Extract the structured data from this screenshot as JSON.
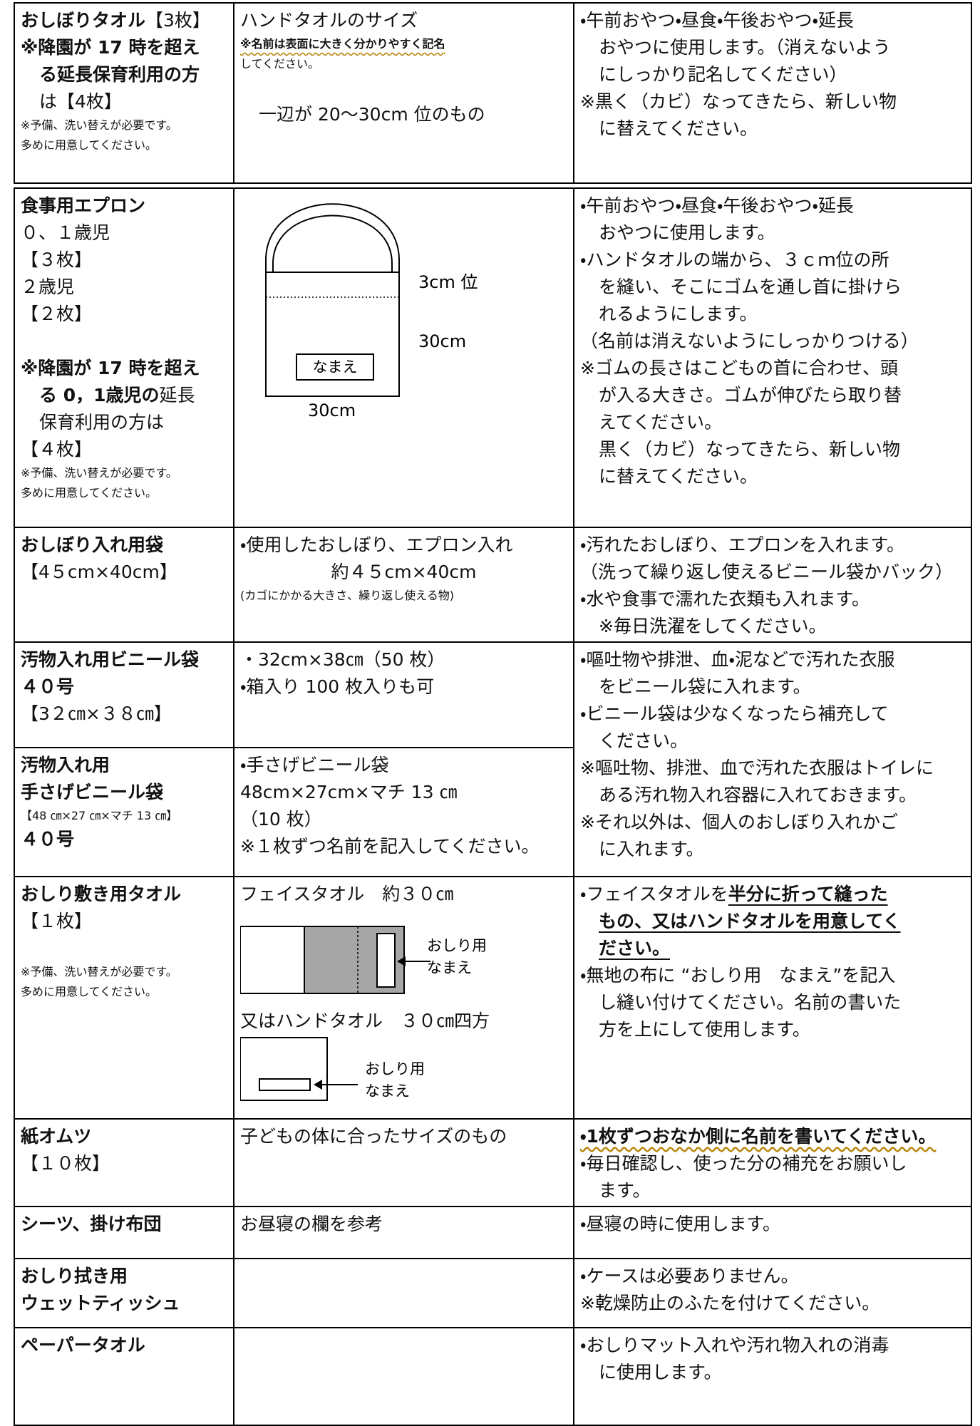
{
  "rows": [
    {
      "c1": [
        {
          "parts": [
            {
              "text": "おしぼりタオル",
              "bold": true
            },
            {
              "text": "【3枚】"
            }
          ]
        },
        {
          "text": "※降園が 17 時を超え",
          "bold": true
        },
        {
          "text": "る延長保育利用の方",
          "bold": true,
          "indent": true
        },
        {
          "text": "は【4枚】",
          "indent": true
        },
        {
          "text": "※予備、洗い替えが必要です。",
          "small": true
        },
        {
          "text": "多めに用意してください。",
          "small": true
        }
      ],
      "c2": [
        "ハンドタオルのサイズ",
        {
          "text": "※名前は表面に大きく分かりやすく記名",
          "bold": true,
          "small": true,
          "wavy": true
        },
        {
          "text": "してください。",
          "small": true
        },
        {
          "text": "一辺が 20～30cm 位のもの",
          "indent": true,
          "gap": true
        }
      ],
      "c3": [
        "・午前おやつ・昼食・午後おやつ・延長",
        {
          "text": "おやつに使用します。（消えないよう",
          "indent": true
        },
        {
          "text": "にしっかり記名してください）",
          "indent": true
        },
        "※黒く（カビ）なってきたら、新しい物",
        {
          "text": "に替えてください。",
          "indent": true
        }
      ]
    },
    {
      "c1": [
        {
          "text": "食事用エプロン",
          "bold": true
        },
        "０、１歳児",
        "【３枚】",
        "２歳児",
        "【２枚】",
        {
          "text": "※降園が 17 時を超え",
          "bold": true,
          "gap": true
        },
        {
          "parts": [
            {
              "text": "る 0，1歳児の",
              "bold": true
            },
            {
              "text": "延長"
            }
          ],
          "indent": true
        },
        {
          "text": "保育利用の方は",
          "indent": true
        },
        "【４枚】",
        {
          "text": "※予備、洗い替えが必要です。",
          "small": true
        },
        {
          "text": "多めに用意してください。",
          "small": true
        }
      ],
      "c2": [
        {
          "labels": [
            "3cm 位",
            "30cm",
            "なまえ",
            "30cm"
          ]
        }
      ],
      "c3": [
        "・午前おやつ・昼食・午後おやつ・延長",
        {
          "text": "おやつに使用します。",
          "indent": true
        },
        "・ハンドタオルの端から、３ｃｍ位の所",
        {
          "text": "を縫い、そこにゴムを通し首に掛けら",
          "indent": true
        },
        {
          "text": "れるようにします。",
          "indent": true
        },
        "（名前は消えないようにしっかりつける）",
        "※ゴムの長さはこどもの首に合わせ、頭",
        {
          "text": "が入る大きさ。ゴムが伸びたら取り替",
          "indent": true
        },
        {
          "text": "えてください。",
          "indent": true
        },
        {
          "text": "黒く（カビ）なってきたら、新しい物",
          "indent": true
        },
        {
          "text": "に替えてください。",
          "indent": true
        }
      ]
    },
    {
      "c1": [
        {
          "text": "おしぼり入れ用袋",
          "bold": true
        },
        "【4５cm×40cm】"
      ],
      "c2": [
        "・使用したおしぼり、エプロン入れ",
        {
          "text": "約４５cm×40cm",
          "center": true
        },
        {
          "text": "(カゴにかかる大きさ、繰り返し使える物)",
          "small": true
        }
      ],
      "c3": [
        "・汚れたおしぼり、エプロンを入れます。",
        "（洗って繰り返し使えるビニール袋かバック）",
        "・水や食事で濡れた衣類も入れます。",
        {
          "text": "※毎日洗濯をしてください。",
          "indent": true
        }
      ]
    },
    {
      "c1": [
        {
          "text": "汚物入れ用ビニール袋",
          "bold": true
        },
        {
          "text": "４０号",
          "bold": true
        },
        "【3２㎝×３８㎝】"
      ],
      "c2": [
        "・32cm×38㎝（50 枚）",
        "・箱入り 100 枚入りも可"
      ],
      "c3": [
        "・嘔吐物や排泄、血・泥などで汚れた衣服",
        {
          "text": "をビニール袋に入れます。",
          "indent": true
        },
        "・ビニール袋は少なくなったら補充して",
        {
          "text": "ください。",
          "indent": true
        },
        "※嘔吐物、排泄、血で汚れた衣服はトイレに",
        {
          "text": "ある汚れ物入れ容器に入れておきます。",
          "indent": true
        },
        "※それ以外は、個人のおしぼり入れかご",
        {
          "text": "に入れます。",
          "indent": true
        }
      ]
    },
    {
      "c1": [
        {
          "text": "汚物入れ用",
          "bold": true
        },
        {
          "text": "手さげビニール袋",
          "bold": true
        },
        {
          "text": "【48 ㎝×27 ㎝×マチ 13 ㎝】",
          "small": true
        },
        {
          "text": "４０号",
          "bold": true
        }
      ],
      "c2": [
        "・手さげビニール袋",
        "48cm×27cm×マチ 13 ㎝",
        "（10 枚）",
        "※１枚ずつ名前を記入してください。"
      ]
    },
    {
      "c1": [
        {
          "text": "おしり敷き用タオル",
          "bold": true
        },
        "【１枚】",
        {
          "text": "※予備、洗い替えが必要です。",
          "small": true,
          "gap": true
        },
        {
          "text": "多めに用意してください。",
          "small": true
        }
      ],
      "c2": [
        "フェイスタオル　約３０㎝",
        {
          "labels": [
            "おしり用",
            "なまえ"
          ]
        },
        "又はハンドタオル　３０㎝四方",
        {
          "labels": [
            "おしり用",
            "なまえ"
          ]
        }
      ],
      "c3": [
        {
          "parts": [
            {
              "text": "・フェイスタオルを"
            },
            {
              "text": "半分に折って縫った",
              "bold": true,
              "underline": true
            }
          ]
        },
        {
          "text": "もの、又はハンドタオルを用意してく",
          "bold": true,
          "underline": true,
          "indent": true
        },
        {
          "text": "ださい。",
          "bold": true,
          "underline": true,
          "indent": true
        },
        "・無地の布に “おしり用　なまえ”を記入",
        {
          "text": "し縫い付けてください。名前の書いた",
          "indent": true
        },
        {
          "text": "方を上にして使用します。",
          "indent": true
        }
      ]
    },
    {
      "c1": [
        {
          "text": "紙オムツ",
          "bold": true
        },
        "【１０枚】"
      ],
      "c2": [
        "子どもの体に合ったサイズのもの"
      ],
      "c3": [
        {
          "text": "・1枚ずつおなか側に名前を書いてください。",
          "bold": true,
          "wavy": true
        },
        "・毎日確認し、使った分の補充をお願いし",
        {
          "text": "ます。",
          "indent": true
        }
      ]
    },
    {
      "c1": [
        {
          "text": "シーツ、掛け布団",
          "bold": true
        }
      ],
      "c2": [
        "お昼寝の欄を参考"
      ],
      "c3": [
        "・昼寝の時に使用します。"
      ]
    },
    {
      "c1": [
        {
          "text": "おしり拭き用",
          "bold": true
        },
        {
          "text": "ウェットティッシュ",
          "bold": true
        }
      ],
      "c2": [],
      "c3": [
        "・ケースは必要ありません。",
        "※乾燥防止のふたを付けてください。"
      ]
    },
    {
      "c1": [
        {
          "text": "ペーパータオル",
          "bold": true
        }
      ],
      "c2": [],
      "c3": [
        "・おしりマット入れや汚れ物入れの消毒",
        {
          "text": "に使用します。",
          "indent": true
        }
      ]
    }
  ]
}
